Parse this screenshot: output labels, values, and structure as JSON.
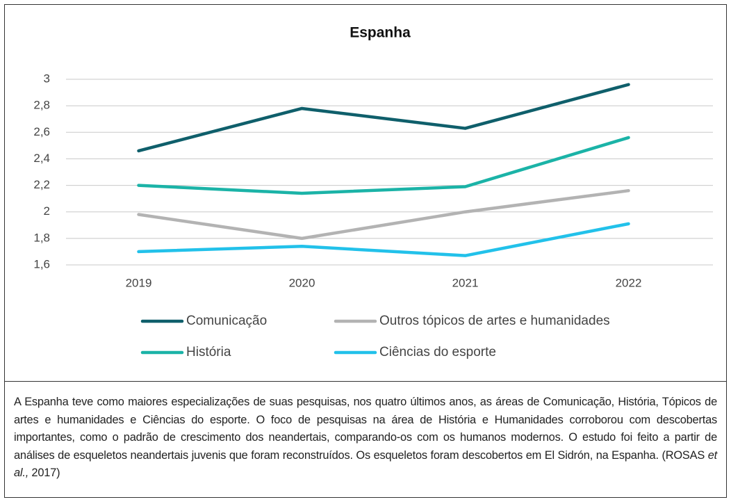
{
  "chart_data": {
    "type": "line",
    "title": "Espanha",
    "categories": [
      "2019",
      "2020",
      "2021",
      "2022"
    ],
    "series": [
      {
        "name": "Comunicação",
        "color": "#0f5f6b",
        "values": [
          2.46,
          2.78,
          2.63,
          2.96
        ]
      },
      {
        "name": "Outros tópicos de artes e humanidades",
        "color": "#b3b3b3",
        "values": [
          1.98,
          1.8,
          2.0,
          2.16
        ]
      },
      {
        "name": "História",
        "color": "#1bb3a7",
        "values": [
          2.2,
          2.14,
          2.19,
          2.56
        ]
      },
      {
        "name": "Ciências do esporte",
        "color": "#22c1ea",
        "values": [
          1.7,
          1.74,
          1.67,
          1.91
        ]
      }
    ],
    "ylim": [
      1.6,
      3
    ],
    "yticks": [
      {
        "value": 1.6,
        "label": "1,6"
      },
      {
        "value": 1.8,
        "label": "1,8"
      },
      2,
      {
        "value": 2.2,
        "label": "2,2"
      },
      {
        "value": 2.4,
        "label": "2,4"
      },
      {
        "value": 2.6,
        "label": "2,6"
      },
      {
        "value": 2.8,
        "label": "2,8"
      },
      3
    ],
    "grid": true,
    "legend": "bottom"
  },
  "caption": {
    "text": "A Espanha teve como maiores especializações de suas pesquisas, nos quatro últimos anos, as áreas de Comunicação, História, Tópicos de artes e humanidades e Ciências do esporte. O foco de pesquisas na área de História e Humanidades corroborou com descobertas importantes, como o padrão de crescimento dos neandertais, comparando-os com os humanos modernos. O estudo foi feito a partir de análises de esqueletos neandertais juvenis que foram reconstruídos. Os esqueletos foram descobertos em El Sidrón, na Espanha. (ROSAS ",
    "emphasis": "et al.,",
    "end": " 2017)"
  }
}
